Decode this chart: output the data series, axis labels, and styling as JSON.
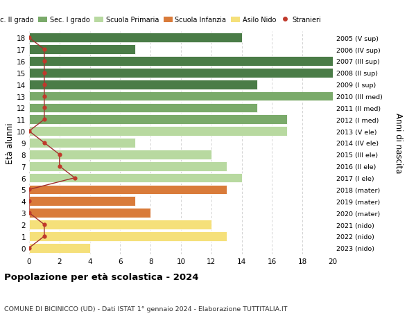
{
  "ages": [
    18,
    17,
    16,
    15,
    14,
    13,
    12,
    11,
    10,
    9,
    8,
    7,
    6,
    5,
    4,
    3,
    2,
    1,
    0
  ],
  "right_labels": [
    "2005 (V sup)",
    "2006 (IV sup)",
    "2007 (III sup)",
    "2008 (II sup)",
    "2009 (I sup)",
    "2010 (III med)",
    "2011 (II med)",
    "2012 (I med)",
    "2013 (V ele)",
    "2014 (IV ele)",
    "2015 (III ele)",
    "2016 (II ele)",
    "2017 (I ele)",
    "2018 (mater)",
    "2019 (mater)",
    "2020 (mater)",
    "2021 (nido)",
    "2022 (nido)",
    "2023 (nido)"
  ],
  "bar_values": [
    14,
    7,
    20,
    20,
    15,
    20,
    15,
    17,
    17,
    7,
    12,
    13,
    14,
    13,
    7,
    8,
    12,
    13,
    4
  ],
  "bar_colors": [
    "#4a7c47",
    "#4a7c47",
    "#4a7c47",
    "#4a7c47",
    "#4a7c47",
    "#7aaa6a",
    "#7aaa6a",
    "#7aaa6a",
    "#b8d9a0",
    "#b8d9a0",
    "#b8d9a0",
    "#b8d9a0",
    "#b8d9a0",
    "#d97b3a",
    "#d97b3a",
    "#d97b3a",
    "#f5e07a",
    "#f5e07a",
    "#f5e07a"
  ],
  "stranieri_values": [
    0,
    1,
    1,
    1,
    1,
    1,
    1,
    1,
    0,
    1,
    2,
    2,
    3,
    0,
    0,
    0,
    1,
    1,
    0
  ],
  "legend_labels": [
    "Sec. II grado",
    "Sec. I grado",
    "Scuola Primaria",
    "Scuola Infanzia",
    "Asilo Nido",
    "Stranieri"
  ],
  "legend_colors": [
    "#4a7c47",
    "#7aaa6a",
    "#b8d9a0",
    "#d97b3a",
    "#f5e07a",
    "#c0392b"
  ],
  "title_bold": "Popolazione per età scolastica - 2024",
  "title_sub": "COMUNE DI BICINICCO (UD) - Dati ISTAT 1° gennaio 2024 - Elaborazione TUTTITALIA.IT",
  "ylabel_left": "Età alunni",
  "ylabel_right": "Anni di nascita",
  "xlim": [
    0,
    20
  ],
  "xticks": [
    0,
    2,
    4,
    6,
    8,
    10,
    12,
    14,
    16,
    18,
    20
  ],
  "bg_color": "#ffffff",
  "grid_color": "#cccccc",
  "stranieri_line_color": "#a03030",
  "stranieri_dot_color": "#c0392b"
}
